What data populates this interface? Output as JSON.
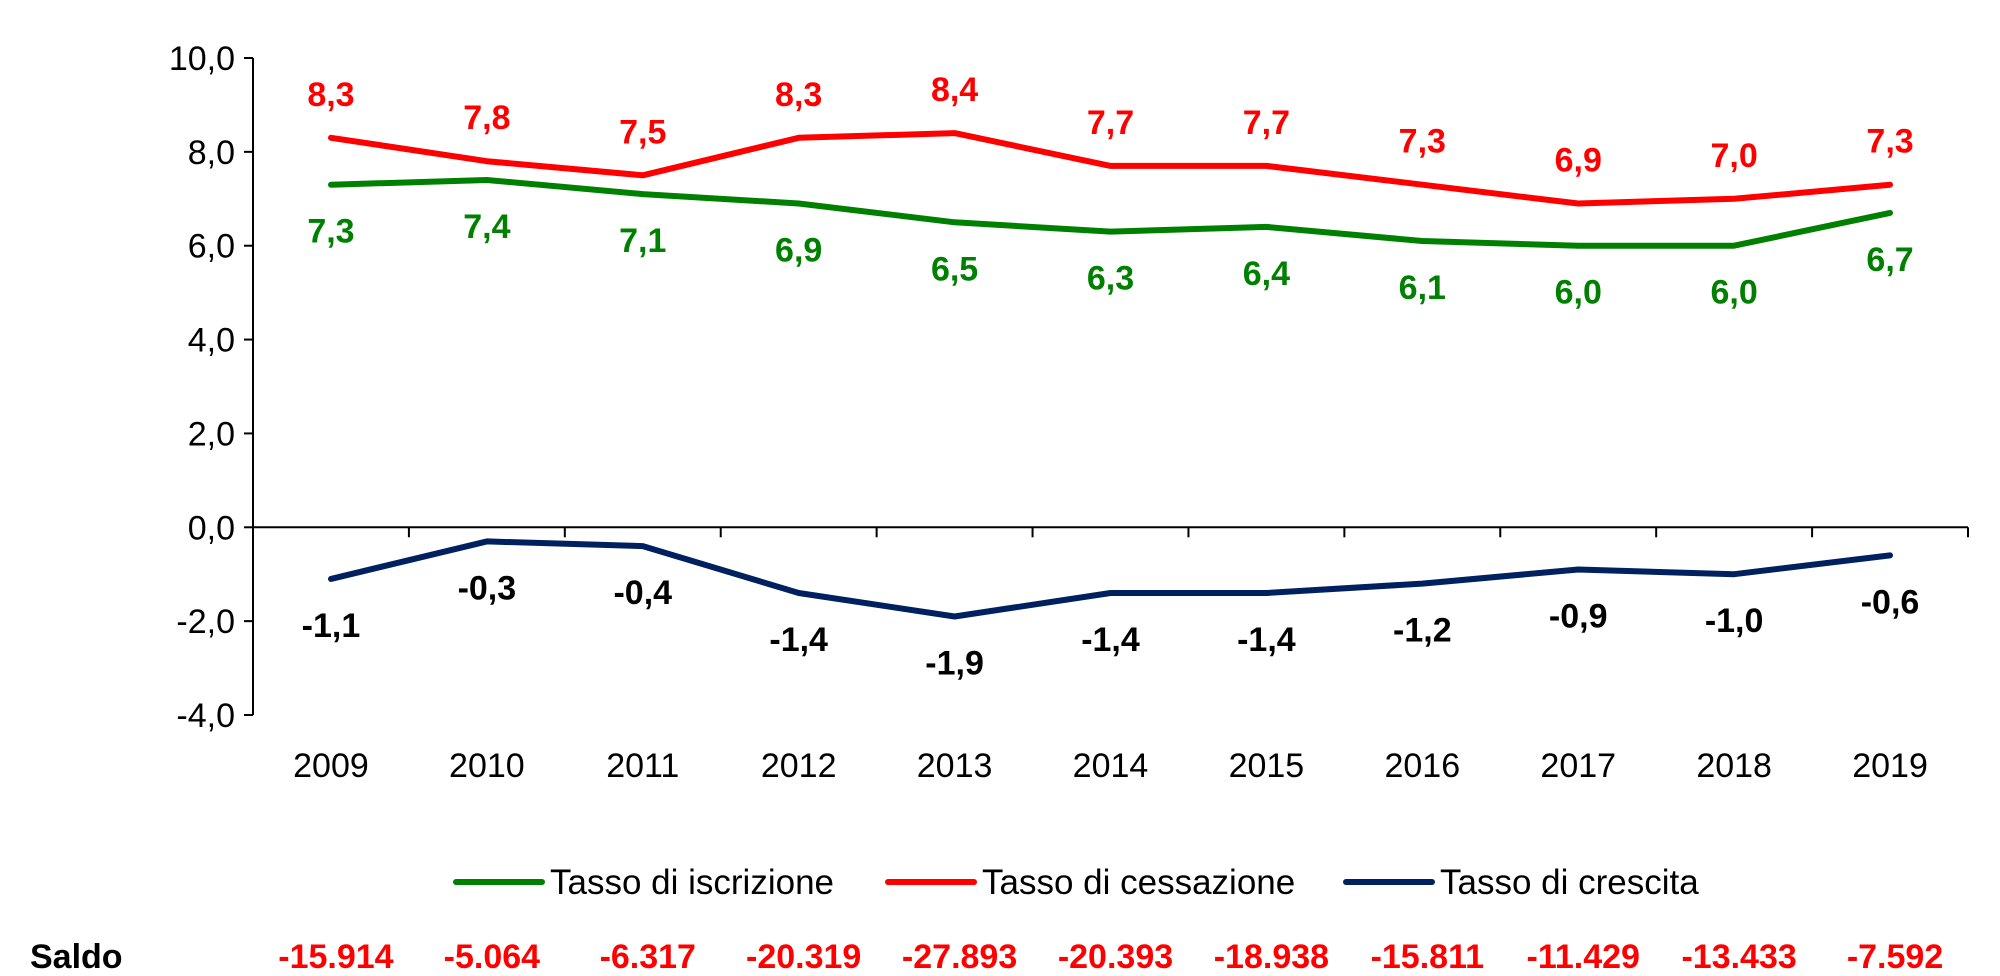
{
  "chart_data": {
    "type": "line",
    "categories": [
      "2009",
      "2010",
      "2011",
      "2012",
      "2013",
      "2014",
      "2015",
      "2016",
      "2017",
      "2018",
      "2019"
    ],
    "ylim": [
      -4.0,
      10.0
    ],
    "y_ticks": [
      "10,0",
      "8,0",
      "6,0",
      "4,0",
      "2,0",
      "0,0",
      "-2,0",
      "-4,0"
    ],
    "y_tick_values": [
      10,
      8,
      6,
      4,
      2,
      0,
      -2,
      -4
    ],
    "grid": false,
    "legend_position": "bottom",
    "series": [
      {
        "name": "Tasso di iscrizione",
        "color": "#008000",
        "values": [
          7.3,
          7.4,
          7.1,
          6.9,
          6.5,
          6.3,
          6.4,
          6.1,
          6.0,
          6.0,
          6.7
        ],
        "labels": [
          "7,3",
          "7,4",
          "7,1",
          "6,9",
          "6,5",
          "6,3",
          "6,4",
          "6,1",
          "6,0",
          "6,0",
          "6,7"
        ]
      },
      {
        "name": "Tasso di cessazione",
        "color": "#ff0000",
        "values": [
          8.3,
          7.8,
          7.5,
          8.3,
          8.4,
          7.7,
          7.7,
          7.3,
          6.9,
          7.0,
          7.3
        ],
        "labels": [
          "8,3",
          "7,8",
          "7,5",
          "8,3",
          "8,4",
          "7,7",
          "7,7",
          "7,3",
          "6,9",
          "7,0",
          "7,3"
        ]
      },
      {
        "name": "Tasso di crescita",
        "color": "#002060",
        "label_color": "#000000",
        "values": [
          -1.1,
          -0.3,
          -0.4,
          -1.4,
          -1.9,
          -1.4,
          -1.4,
          -1.2,
          -0.9,
          -1.0,
          -0.6
        ],
        "labels": [
          "-1,1",
          "-0,3",
          "-0,4",
          "-1,4",
          "-1,9",
          "-1,4",
          "-1,4",
          "-1,2",
          "-0,9",
          "-1,0",
          "-0,6"
        ]
      }
    ],
    "saldo": {
      "label": "Saldo",
      "color": "#ff0000",
      "values": [
        "-15.914",
        "-5.064",
        "-6.317",
        "-20.319",
        "-27.893",
        "-20.393",
        "-18.938",
        "-15.811",
        "-11.429",
        "-13.433",
        "-7.592"
      ]
    }
  }
}
